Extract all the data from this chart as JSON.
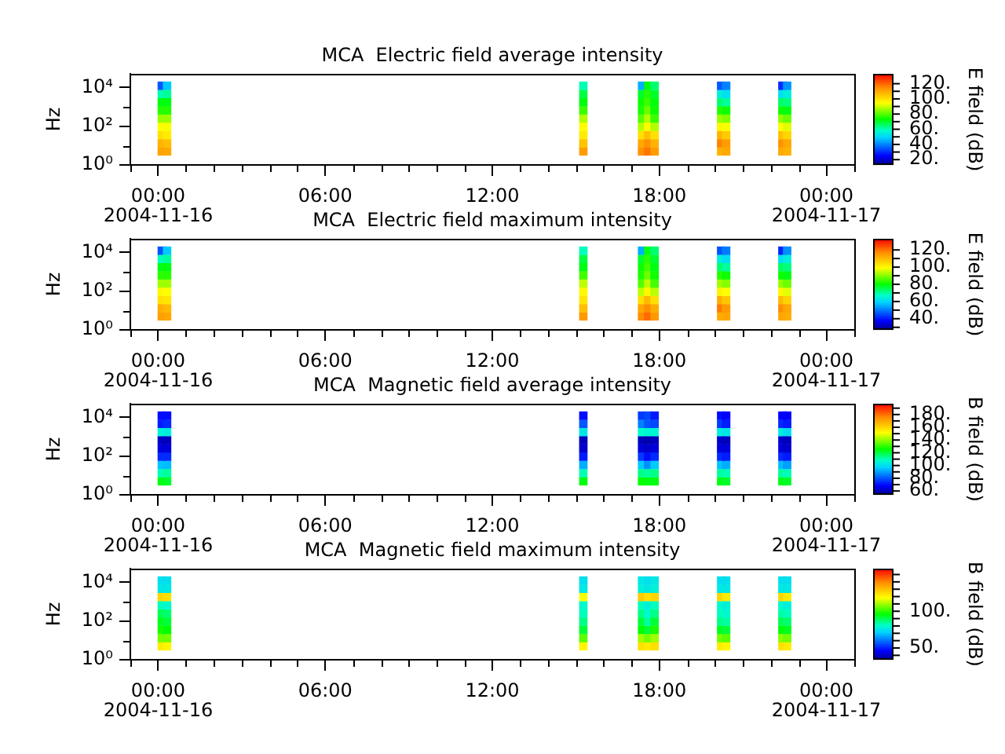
{
  "chart_data": [
    {
      "type": "scatter",
      "title": "MCA  Electric field average intensity",
      "ylabel": "Hz",
      "clabel": "E field (dB)",
      "marker": "square",
      "log": "y",
      "xlim": [
        -1,
        25
      ],
      "xticks": [
        {
          "value": -1,
          "label": null
        },
        {
          "value": 0,
          "label": "00:00\n2004-11-16"
        },
        {
          "value": 1,
          "label": null
        },
        {
          "value": 2,
          "label": null
        },
        {
          "value": 3,
          "label": null
        },
        {
          "value": 4,
          "label": null
        },
        {
          "value": 5,
          "label": null
        },
        {
          "value": 6,
          "label": "06:00"
        },
        {
          "value": 7,
          "label": null
        },
        {
          "value": 8,
          "label": null
        },
        {
          "value": 9,
          "label": null
        },
        {
          "value": 10,
          "label": null
        },
        {
          "value": 11,
          "label": null
        },
        {
          "value": 12,
          "label": "12:00"
        },
        {
          "value": 13,
          "label": null
        },
        {
          "value": 14,
          "label": null
        },
        {
          "value": 15,
          "label": null
        },
        {
          "value": 16,
          "label": null
        },
        {
          "value": 17,
          "label": null
        },
        {
          "value": 18,
          "label": "18:00"
        },
        {
          "value": 19,
          "label": null
        },
        {
          "value": 20,
          "label": null
        },
        {
          "value": 21,
          "label": null
        },
        {
          "value": 22,
          "label": null
        },
        {
          "value": 23,
          "label": null
        },
        {
          "value": 24,
          "label": "00:00\n2004-11-17"
        },
        {
          "value": 25,
          "label": null
        }
      ],
      "ylim": [
        1,
        50000
      ],
      "yticks": [
        {
          "value": 1,
          "label": "10⁰"
        },
        {
          "value": 10,
          "label": null
        },
        {
          "value": 100,
          "label": "10²"
        },
        {
          "value": 1000,
          "label": null
        },
        {
          "value": 10000,
          "label": "10⁴"
        }
      ],
      "clim": [
        13,
        133
      ],
      "cticks": [
        {
          "value": 20,
          "label": "20."
        },
        {
          "value": 30,
          "label": null
        },
        {
          "value": 40,
          "label": "40."
        },
        {
          "value": 50,
          "label": null
        },
        {
          "value": 60,
          "label": "60."
        },
        {
          "value": 70,
          "label": null
        },
        {
          "value": 80,
          "label": "80."
        },
        {
          "value": 90,
          "label": null
        },
        {
          "value": 100,
          "label": "100."
        },
        {
          "value": 110,
          "label": null
        },
        {
          "value": 120,
          "label": "120."
        }
      ],
      "x": [
        0.13,
        0.13,
        0.13,
        0.13,
        0.13,
        0.13,
        0.13,
        0.13,
        0.13,
        0.32,
        0.32,
        0.32,
        0.32,
        0.32,
        0.32,
        0.32,
        0.32,
        0.32,
        15.27,
        15.27,
        15.27,
        15.27,
        15.27,
        15.27,
        15.27,
        15.27,
        15.27,
        17.38,
        17.38,
        17.38,
        17.38,
        17.38,
        17.38,
        17.38,
        17.38,
        17.38,
        17.6,
        17.6,
        17.6,
        17.6,
        17.6,
        17.6,
        17.6,
        17.6,
        17.6,
        17.83,
        17.83,
        17.83,
        17.83,
        17.83,
        17.83,
        17.83,
        17.83,
        17.83,
        20.22,
        20.22,
        20.22,
        20.22,
        20.22,
        20.22,
        20.22,
        20.22,
        20.22,
        20.4,
        20.4,
        20.4,
        20.4,
        20.4,
        20.4,
        20.4,
        20.4,
        20.4,
        22.42,
        22.42,
        22.42,
        22.42,
        22.42,
        22.42,
        22.42,
        22.42,
        22.42,
        22.59,
        22.59,
        22.59,
        22.59,
        22.59,
        22.59,
        22.59,
        22.59,
        22.59
      ],
      "values": [
        5,
        13,
        35,
        93,
        247,
        653,
        1730,
        4580,
        12100,
        5,
        13,
        35,
        93,
        247,
        653,
        1730,
        4580,
        12100,
        5,
        13,
        35,
        93,
        247,
        653,
        1730,
        4580,
        12100,
        5,
        13,
        35,
        93,
        247,
        653,
        1730,
        4580,
        12100,
        5,
        13,
        35,
        93,
        247,
        653,
        1730,
        4580,
        12100,
        5,
        13,
        35,
        93,
        247,
        653,
        1730,
        4580,
        12100,
        5,
        13,
        35,
        93,
        247,
        653,
        1730,
        4580,
        12100,
        5,
        13,
        35,
        93,
        247,
        653,
        1730,
        4580,
        12100,
        5,
        13,
        35,
        93,
        247,
        653,
        1730,
        4580,
        12100,
        5,
        13,
        35,
        93,
        247,
        653,
        1730,
        4580,
        12100
      ],
      "cvalues": [
        111,
        108,
        100,
        95,
        86,
        76,
        72,
        60,
        35,
        110,
        106,
        98,
        94,
        86,
        76,
        72,
        62,
        48,
        112,
        105,
        98,
        95,
        88,
        78,
        72,
        68,
        60,
        114,
        110,
        100,
        88,
        80,
        75,
        74,
        70,
        45,
        118,
        114,
        106,
        95,
        88,
        82,
        78,
        76,
        72,
        112,
        108,
        100,
        88,
        78,
        74,
        72,
        70,
        65,
        108,
        116,
        108,
        96,
        86,
        76,
        65,
        55,
        35,
        110,
        112,
        104,
        94,
        84,
        74,
        62,
        52,
        40,
        110,
        114,
        106,
        95,
        85,
        74,
        66,
        52,
        30,
        108,
        110,
        102,
        92,
        82,
        72,
        64,
        55,
        42
      ]
    },
    {
      "type": "scatter",
      "title": "MCA  Electric field maximum intensity",
      "ylabel": "Hz",
      "clabel": "E field (dB)",
      "marker": "square",
      "log": "y",
      "xlim": [
        -1,
        25
      ],
      "xticks": [
        {
          "value": -1,
          "label": null
        },
        {
          "value": 0,
          "label": "00:00\n2004-11-16"
        },
        {
          "value": 1,
          "label": null
        },
        {
          "value": 2,
          "label": null
        },
        {
          "value": 3,
          "label": null
        },
        {
          "value": 4,
          "label": null
        },
        {
          "value": 5,
          "label": null
        },
        {
          "value": 6,
          "label": "06:00"
        },
        {
          "value": 7,
          "label": null
        },
        {
          "value": 8,
          "label": null
        },
        {
          "value": 9,
          "label": null
        },
        {
          "value": 10,
          "label": null
        },
        {
          "value": 11,
          "label": null
        },
        {
          "value": 12,
          "label": "12:00"
        },
        {
          "value": 13,
          "label": null
        },
        {
          "value": 14,
          "label": null
        },
        {
          "value": 15,
          "label": null
        },
        {
          "value": 16,
          "label": null
        },
        {
          "value": 17,
          "label": null
        },
        {
          "value": 18,
          "label": "18:00"
        },
        {
          "value": 19,
          "label": null
        },
        {
          "value": 20,
          "label": null
        },
        {
          "value": 21,
          "label": null
        },
        {
          "value": 22,
          "label": null
        },
        {
          "value": 23,
          "label": null
        },
        {
          "value": 24,
          "label": "00:00\n2004-11-17"
        },
        {
          "value": 25,
          "label": null
        }
      ],
      "ylim": [
        1,
        50000
      ],
      "yticks": [
        {
          "value": 1,
          "label": "10⁰"
        },
        {
          "value": 10,
          "label": null
        },
        {
          "value": 100,
          "label": "10²"
        },
        {
          "value": 1000,
          "label": null
        },
        {
          "value": 10000,
          "label": "10⁴"
        }
      ],
      "clim": [
        27,
        133
      ],
      "cticks": [
        {
          "value": 30,
          "label": null
        },
        {
          "value": 40,
          "label": "40."
        },
        {
          "value": 50,
          "label": null
        },
        {
          "value": 60,
          "label": "60."
        },
        {
          "value": 70,
          "label": null
        },
        {
          "value": 80,
          "label": "80."
        },
        {
          "value": 90,
          "label": null
        },
        {
          "value": 100,
          "label": "100."
        },
        {
          "value": 110,
          "label": null
        },
        {
          "value": 120,
          "label": "120."
        }
      ],
      "x": [
        0.13,
        0.13,
        0.13,
        0.13,
        0.13,
        0.13,
        0.13,
        0.13,
        0.13,
        0.32,
        0.32,
        0.32,
        0.32,
        0.32,
        0.32,
        0.32,
        0.32,
        0.32,
        15.27,
        15.27,
        15.27,
        15.27,
        15.27,
        15.27,
        15.27,
        15.27,
        15.27,
        17.38,
        17.38,
        17.38,
        17.38,
        17.38,
        17.38,
        17.38,
        17.38,
        17.38,
        17.6,
        17.6,
        17.6,
        17.6,
        17.6,
        17.6,
        17.6,
        17.6,
        17.6,
        17.83,
        17.83,
        17.83,
        17.83,
        17.83,
        17.83,
        17.83,
        17.83,
        17.83,
        20.22,
        20.22,
        20.22,
        20.22,
        20.22,
        20.22,
        20.22,
        20.22,
        20.22,
        20.4,
        20.4,
        20.4,
        20.4,
        20.4,
        20.4,
        20.4,
        20.4,
        20.4,
        22.42,
        22.42,
        22.42,
        22.42,
        22.42,
        22.42,
        22.42,
        22.42,
        22.42,
        22.59,
        22.59,
        22.59,
        22.59,
        22.59,
        22.59,
        22.59,
        22.59,
        22.59
      ],
      "values": [
        5,
        13,
        35,
        93,
        247,
        653,
        1730,
        4580,
        12100,
        5,
        13,
        35,
        93,
        247,
        653,
        1730,
        4580,
        12100,
        5,
        13,
        35,
        93,
        247,
        653,
        1730,
        4580,
        12100,
        5,
        13,
        35,
        93,
        247,
        653,
        1730,
        4580,
        12100,
        5,
        13,
        35,
        93,
        247,
        653,
        1730,
        4580,
        12100,
        5,
        13,
        35,
        93,
        247,
        653,
        1730,
        4580,
        12100,
        5,
        13,
        35,
        93,
        247,
        653,
        1730,
        4580,
        12100,
        5,
        13,
        35,
        93,
        247,
        653,
        1730,
        4580,
        12100,
        5,
        13,
        35,
        93,
        247,
        653,
        1730,
        4580,
        12100,
        5,
        13,
        35,
        93,
        247,
        653,
        1730,
        4580,
        12100
      ],
      "cvalues": [
        114,
        112,
        104,
        100,
        92,
        83,
        79,
        68,
        46,
        113,
        110,
        103,
        99,
        92,
        83,
        79,
        70,
        58,
        115,
        109,
        103,
        100,
        94,
        85,
        79,
        76,
        68,
        117,
        113,
        104,
        94,
        86,
        82,
        81,
        77,
        55,
        121,
        117,
        110,
        100,
        94,
        88,
        85,
        83,
        79,
        115,
        112,
        104,
        94,
        85,
        81,
        79,
        77,
        73,
        112,
        119,
        112,
        101,
        92,
        83,
        73,
        64,
        46,
        113,
        115,
        108,
        99,
        90,
        81,
        70,
        61,
        50,
        113,
        117,
        110,
        100,
        91,
        81,
        74,
        61,
        41,
        112,
        113,
        106,
        97,
        88,
        79,
        72,
        64,
        52
      ]
    },
    {
      "type": "scatter",
      "title": "MCA  Magnetic field average intensity",
      "ylabel": "Hz",
      "clabel": "B field (dB)",
      "marker": "square",
      "log": "y",
      "xlim": [
        -1,
        25
      ],
      "xticks": [
        {
          "value": -1,
          "label": null
        },
        {
          "value": 0,
          "label": "00:00\n2004-11-16"
        },
        {
          "value": 1,
          "label": null
        },
        {
          "value": 2,
          "label": null
        },
        {
          "value": 3,
          "label": null
        },
        {
          "value": 4,
          "label": null
        },
        {
          "value": 5,
          "label": null
        },
        {
          "value": 6,
          "label": "06:00"
        },
        {
          "value": 7,
          "label": null
        },
        {
          "value": 8,
          "label": null
        },
        {
          "value": 9,
          "label": null
        },
        {
          "value": 10,
          "label": null
        },
        {
          "value": 11,
          "label": null
        },
        {
          "value": 12,
          "label": "12:00"
        },
        {
          "value": 13,
          "label": null
        },
        {
          "value": 14,
          "label": null
        },
        {
          "value": 15,
          "label": null
        },
        {
          "value": 16,
          "label": null
        },
        {
          "value": 17,
          "label": null
        },
        {
          "value": 18,
          "label": "18:00"
        },
        {
          "value": 19,
          "label": null
        },
        {
          "value": 20,
          "label": null
        },
        {
          "value": 21,
          "label": null
        },
        {
          "value": 22,
          "label": null
        },
        {
          "value": 23,
          "label": null
        },
        {
          "value": 24,
          "label": "00:00\n2004-11-17"
        },
        {
          "value": 25,
          "label": null
        }
      ],
      "ylim": [
        1,
        50000
      ],
      "yticks": [
        {
          "value": 1,
          "label": "10⁰"
        },
        {
          "value": 10,
          "label": null
        },
        {
          "value": 100,
          "label": "10²"
        },
        {
          "value": 1000,
          "label": null
        },
        {
          "value": 10000,
          "label": "10⁴"
        }
      ],
      "clim": [
        54,
        197
      ],
      "cticks": [
        {
          "value": 60,
          "label": "60."
        },
        {
          "value": 70,
          "label": null
        },
        {
          "value": 80,
          "label": "80."
        },
        {
          "value": 90,
          "label": null
        },
        {
          "value": 100,
          "label": "100."
        },
        {
          "value": 110,
          "label": null
        },
        {
          "value": 120,
          "label": "120."
        },
        {
          "value": 130,
          "label": null
        },
        {
          "value": 140,
          "label": "140."
        },
        {
          "value": 150,
          "label": null
        },
        {
          "value": 160,
          "label": "160."
        },
        {
          "value": 170,
          "label": null
        },
        {
          "value": 180,
          "label": "180."
        },
        {
          "value": 190,
          "label": null
        }
      ],
      "x": [
        0.13,
        0.13,
        0.13,
        0.13,
        0.13,
        0.13,
        0.13,
        0.13,
        0.13,
        0.32,
        0.32,
        0.32,
        0.32,
        0.32,
        0.32,
        0.32,
        0.32,
        0.32,
        15.27,
        15.27,
        15.27,
        15.27,
        15.27,
        15.27,
        15.27,
        15.27,
        15.27,
        17.38,
        17.38,
        17.38,
        17.38,
        17.38,
        17.38,
        17.38,
        17.38,
        17.38,
        17.6,
        17.6,
        17.6,
        17.6,
        17.6,
        17.6,
        17.6,
        17.6,
        17.6,
        17.83,
        17.83,
        17.83,
        17.83,
        17.83,
        17.83,
        17.83,
        17.83,
        17.83,
        20.22,
        20.22,
        20.22,
        20.22,
        20.22,
        20.22,
        20.22,
        20.22,
        20.22,
        20.4,
        20.4,
        20.4,
        20.4,
        20.4,
        20.4,
        20.4,
        20.4,
        20.4,
        22.42,
        22.42,
        22.42,
        22.42,
        22.42,
        22.42,
        22.42,
        22.42,
        22.42,
        22.59,
        22.59,
        22.59,
        22.59,
        22.59,
        22.59,
        22.59,
        22.59,
        22.59
      ],
      "values": [
        5,
        13,
        35,
        93,
        247,
        653,
        1730,
        4580,
        12100,
        5,
        13,
        35,
        93,
        247,
        653,
        1730,
        4580,
        12100,
        5,
        13,
        35,
        93,
        247,
        653,
        1730,
        4580,
        12100,
        5,
        13,
        35,
        93,
        247,
        653,
        1730,
        4580,
        12100,
        5,
        13,
        35,
        93,
        247,
        653,
        1730,
        4580,
        12100,
        5,
        13,
        35,
        93,
        247,
        653,
        1730,
        4580,
        12100,
        5,
        13,
        35,
        93,
        247,
        653,
        1730,
        4580,
        12100,
        5,
        13,
        35,
        93,
        247,
        653,
        1730,
        4580,
        12100,
        5,
        13,
        35,
        93,
        247,
        653,
        1730,
        4580,
        12100,
        5,
        13,
        35,
        93,
        247,
        653,
        1730,
        4580,
        12100
      ],
      "cvalues": [
        124,
        110,
        95,
        74,
        64,
        61,
        106,
        72,
        70,
        122,
        112,
        94,
        74,
        64,
        60,
        104,
        74,
        70,
        124,
        110,
        92,
        72,
        62,
        60,
        102,
        80,
        70,
        126,
        114,
        96,
        76,
        64,
        60,
        108,
        86,
        76,
        124,
        112,
        88,
        70,
        62,
        58,
        106,
        80,
        78,
        124,
        114,
        96,
        74,
        64,
        60,
        106,
        78,
        72,
        124,
        112,
        95,
        74,
        64,
        62,
        104,
        76,
        70,
        122,
        110,
        92,
        72,
        64,
        60,
        102,
        72,
        68,
        124,
        112,
        94,
        74,
        64,
        62,
        104,
        74,
        68,
        122,
        110,
        90,
        72,
        62,
        60,
        100,
        72,
        68
      ]
    },
    {
      "type": "scatter",
      "title": "MCA  Magnetic field maximum intensity",
      "ylabel": "Hz",
      "clabel": "B field (dB)",
      "marker": "square",
      "log": "y",
      "xlim": [
        -1,
        25
      ],
      "xticks": [
        {
          "value": -1,
          "label": null
        },
        {
          "value": 0,
          "label": "00:00\n2004-11-16"
        },
        {
          "value": 1,
          "label": null
        },
        {
          "value": 2,
          "label": null
        },
        {
          "value": 3,
          "label": null
        },
        {
          "value": 4,
          "label": null
        },
        {
          "value": 5,
          "label": null
        },
        {
          "value": 6,
          "label": "06:00"
        },
        {
          "value": 7,
          "label": null
        },
        {
          "value": 8,
          "label": null
        },
        {
          "value": 9,
          "label": null
        },
        {
          "value": 10,
          "label": null
        },
        {
          "value": 11,
          "label": null
        },
        {
          "value": 12,
          "label": "12:00"
        },
        {
          "value": 13,
          "label": null
        },
        {
          "value": 14,
          "label": null
        },
        {
          "value": 15,
          "label": null
        },
        {
          "value": 16,
          "label": null
        },
        {
          "value": 17,
          "label": null
        },
        {
          "value": 18,
          "label": "18:00"
        },
        {
          "value": 19,
          "label": null
        },
        {
          "value": 20,
          "label": null
        },
        {
          "value": 21,
          "label": null
        },
        {
          "value": 22,
          "label": null
        },
        {
          "value": 23,
          "label": null
        },
        {
          "value": 24,
          "label": "00:00\n2004-11-17"
        },
        {
          "value": 25,
          "label": null
        }
      ],
      "ylim": [
        1,
        50000
      ],
      "yticks": [
        {
          "value": 1,
          "label": "10⁰"
        },
        {
          "value": 10,
          "label": null
        },
        {
          "value": 100,
          "label": "10²"
        },
        {
          "value": 1000,
          "label": null
        },
        {
          "value": 10000,
          "label": "10⁴"
        }
      ],
      "clim": [
        34,
        158
      ],
      "cticks": [
        {
          "value": 40,
          "label": null
        },
        {
          "value": 50,
          "label": "50."
        },
        {
          "value": 60,
          "label": null
        },
        {
          "value": 70,
          "label": null
        },
        {
          "value": 80,
          "label": null
        },
        {
          "value": 90,
          "label": null
        },
        {
          "value": 100,
          "label": "100."
        },
        {
          "value": 110,
          "label": null
        },
        {
          "value": 120,
          "label": null
        },
        {
          "value": 130,
          "label": null
        },
        {
          "value": 140,
          "label": null
        },
        {
          "value": 150,
          "label": null
        }
      ],
      "x": [
        0.13,
        0.13,
        0.13,
        0.13,
        0.13,
        0.13,
        0.13,
        0.13,
        0.13,
        0.32,
        0.32,
        0.32,
        0.32,
        0.32,
        0.32,
        0.32,
        0.32,
        0.32,
        15.27,
        15.27,
        15.27,
        15.27,
        15.27,
        15.27,
        15.27,
        15.27,
        15.27,
        17.38,
        17.38,
        17.38,
        17.38,
        17.38,
        17.38,
        17.38,
        17.38,
        17.38,
        17.6,
        17.6,
        17.6,
        17.6,
        17.6,
        17.6,
        17.6,
        17.6,
        17.6,
        17.83,
        17.83,
        17.83,
        17.83,
        17.83,
        17.83,
        17.83,
        17.83,
        17.83,
        20.22,
        20.22,
        20.22,
        20.22,
        20.22,
        20.22,
        20.22,
        20.22,
        20.22,
        20.4,
        20.4,
        20.4,
        20.4,
        20.4,
        20.4,
        20.4,
        20.4,
        20.4,
        22.42,
        22.42,
        22.42,
        22.42,
        22.42,
        22.42,
        22.42,
        22.42,
        22.42,
        22.59,
        22.59,
        22.59,
        22.59,
        22.59,
        22.59,
        22.59,
        22.59,
        22.59
      ],
      "values": [
        5,
        13,
        35,
        93,
        247,
        653,
        1730,
        4580,
        12100,
        5,
        13,
        35,
        93,
        247,
        653,
        1730,
        4580,
        12100,
        5,
        13,
        35,
        93,
        247,
        653,
        1730,
        4580,
        12100,
        5,
        13,
        35,
        93,
        247,
        653,
        1730,
        4580,
        12100,
        5,
        13,
        35,
        93,
        247,
        653,
        1730,
        4580,
        12100,
        5,
        13,
        35,
        93,
        247,
        653,
        1730,
        4580,
        12100,
        5,
        13,
        35,
        93,
        247,
        653,
        1730,
        4580,
        12100,
        5,
        13,
        35,
        93,
        247,
        653,
        1730,
        4580,
        12100,
        5,
        13,
        35,
        93,
        247,
        653,
        1730,
        4580,
        12100,
        5,
        13,
        35,
        93,
        247,
        653,
        1730,
        4580,
        12100
      ],
      "cvalues": [
        122,
        106,
        98,
        94,
        90,
        82,
        126,
        76,
        74,
        120,
        106,
        96,
        92,
        88,
        80,
        124,
        76,
        74,
        120,
        104,
        92,
        86,
        82,
        80,
        118,
        76,
        74,
        124,
        110,
        96,
        92,
        86,
        82,
        128,
        78,
        76,
        122,
        106,
        92,
        84,
        80,
        78,
        124,
        76,
        74,
        124,
        110,
        98,
        92,
        86,
        82,
        126,
        78,
        76,
        122,
        106,
        94,
        86,
        82,
        80,
        126,
        76,
        74,
        120,
        104,
        92,
        84,
        80,
        78,
        122,
        76,
        74,
        124,
        108,
        96,
        90,
        84,
        80,
        126,
        76,
        74,
        122,
        106,
        94,
        88,
        82,
        78,
        122,
        76,
        74
      ]
    }
  ]
}
